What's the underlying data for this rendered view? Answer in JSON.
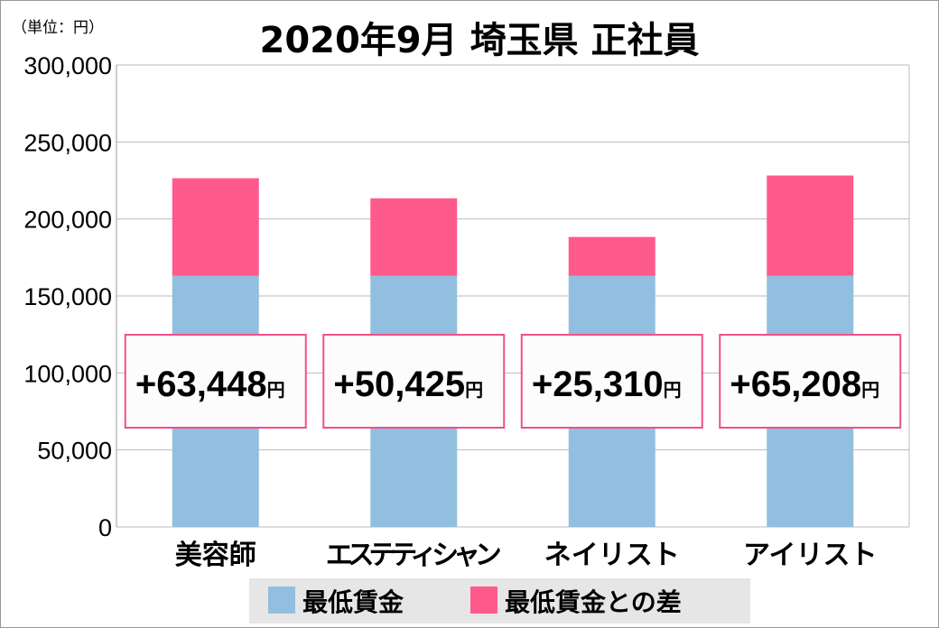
{
  "chart_data": {
    "type": "bar",
    "stacked": true,
    "title": "2020年9月 埼玉県 正社員",
    "unit_label": "（単位：円）",
    "categories": [
      "美容師",
      "エステティシャン",
      "ネイリスト",
      "アイリスト"
    ],
    "series": [
      {
        "name": "最低賃金",
        "color": "#92bfdf",
        "values": [
          163000,
          163000,
          163000,
          163000
        ]
      },
      {
        "name": "最低賃金との差",
        "color": "#ff5a8c",
        "values": [
          63448,
          50425,
          25310,
          65208
        ]
      }
    ],
    "data_labels": [
      "+63,448",
      "+50,425",
      "+25,310",
      "+65,208"
    ],
    "data_label_suffix": "円",
    "ylim": [
      0,
      300000
    ],
    "yticks": [
      0,
      50000,
      100000,
      150000,
      200000,
      250000,
      300000
    ],
    "ytick_labels": [
      "0",
      "50,000",
      "100,000",
      "150,000",
      "200,000",
      "250,000",
      "300,000"
    ],
    "grid": true,
    "legend": "bottom"
  }
}
